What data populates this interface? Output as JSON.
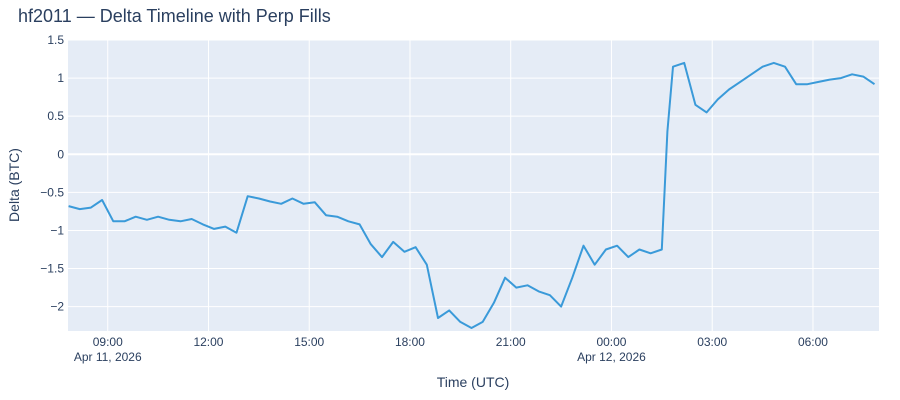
{
  "chart_data": {
    "type": "line",
    "title": "hf2011 — Delta Timeline with Perp Fills",
    "x_label": "Time (UTC)",
    "y_label": "Delta (BTC)",
    "grid": true,
    "background": "#e5ecf6",
    "x": [
      "2026-04-11T07:50",
      "2026-04-11T08:10",
      "2026-04-11T08:30",
      "2026-04-11T08:50",
      "2026-04-11T09:10",
      "2026-04-11T09:30",
      "2026-04-11T09:50",
      "2026-04-11T10:10",
      "2026-04-11T10:30",
      "2026-04-11T10:50",
      "2026-04-11T11:10",
      "2026-04-11T11:30",
      "2026-04-11T11:50",
      "2026-04-11T12:10",
      "2026-04-11T12:30",
      "2026-04-11T12:50",
      "2026-04-11T13:10",
      "2026-04-11T13:30",
      "2026-04-11T13:50",
      "2026-04-11T14:10",
      "2026-04-11T14:30",
      "2026-04-11T14:50",
      "2026-04-11T15:10",
      "2026-04-11T15:30",
      "2026-04-11T15:50",
      "2026-04-11T16:10",
      "2026-04-11T16:30",
      "2026-04-11T16:50",
      "2026-04-11T17:10",
      "2026-04-11T17:30",
      "2026-04-11T17:50",
      "2026-04-11T18:10",
      "2026-04-11T18:30",
      "2026-04-11T18:50",
      "2026-04-11T19:10",
      "2026-04-11T19:30",
      "2026-04-11T19:50",
      "2026-04-11T20:10",
      "2026-04-11T20:30",
      "2026-04-11T20:50",
      "2026-04-11T21:10",
      "2026-04-11T21:30",
      "2026-04-11T21:50",
      "2026-04-11T22:10",
      "2026-04-11T22:30",
      "2026-04-11T22:50",
      "2026-04-11T23:10",
      "2026-04-11T23:30",
      "2026-04-11T23:50",
      "2026-04-12T00:10",
      "2026-04-12T00:30",
      "2026-04-12T00:50",
      "2026-04-12T01:10",
      "2026-04-12T01:30",
      "2026-04-12T01:40",
      "2026-04-12T01:50",
      "2026-04-12T02:10",
      "2026-04-12T02:30",
      "2026-04-12T02:50",
      "2026-04-12T03:10",
      "2026-04-12T03:30",
      "2026-04-12T03:50",
      "2026-04-12T04:10",
      "2026-04-12T04:30",
      "2026-04-12T04:50",
      "2026-04-12T05:10",
      "2026-04-12T05:30",
      "2026-04-12T05:50",
      "2026-04-12T06:10",
      "2026-04-12T06:30",
      "2026-04-12T06:50",
      "2026-04-12T07:10",
      "2026-04-12T07:30",
      "2026-04-12T07:50"
    ],
    "series": [
      {
        "name": "Delta",
        "color": "#3a9ad9",
        "values": [
          -0.68,
          -0.72,
          -0.7,
          -0.6,
          -0.88,
          -0.88,
          -0.82,
          -0.86,
          -0.82,
          -0.86,
          -0.88,
          -0.85,
          -0.92,
          -0.98,
          -0.95,
          -1.03,
          -0.55,
          -0.58,
          -0.62,
          -0.65,
          -0.58,
          -0.65,
          -0.63,
          -0.8,
          -0.82,
          -0.88,
          -0.92,
          -1.18,
          -1.35,
          -1.15,
          -1.28,
          -1.22,
          -1.45,
          -2.15,
          -2.05,
          -2.2,
          -2.28,
          -2.2,
          -1.95,
          -1.62,
          -1.75,
          -1.72,
          -1.8,
          -1.85,
          -2.0,
          -1.62,
          -1.2,
          -1.45,
          -1.25,
          -1.2,
          -1.35,
          -1.25,
          -1.3,
          -1.25,
          0.3,
          1.15,
          1.2,
          0.65,
          0.55,
          0.72,
          0.85,
          0.95,
          1.05,
          1.15,
          1.2,
          1.15,
          0.92,
          0.92,
          0.95,
          0.98,
          1.0,
          1.05,
          1.02,
          0.92
        ]
      }
    ],
    "xlim": [
      "2026-04-11T07:49",
      "2026-04-12T07:58"
    ],
    "xticks": [
      {
        "value": "2026-04-11T09:00",
        "label": "09:00\nApr 11, 2026"
      },
      {
        "value": "2026-04-11T12:00",
        "label": "12:00"
      },
      {
        "value": "2026-04-11T15:00",
        "label": "15:00"
      },
      {
        "value": "2026-04-11T18:00",
        "label": "18:00"
      },
      {
        "value": "2026-04-11T21:00",
        "label": "21:00"
      },
      {
        "value": "2026-04-12T00:00",
        "label": "00:00\nApr 12, 2026"
      },
      {
        "value": "2026-04-12T03:00",
        "label": "03:00"
      },
      {
        "value": "2026-04-12T06:00",
        "label": "06:00"
      }
    ],
    "ylim": [
      -2.32,
      1.5
    ],
    "yticks": [
      {
        "value": -2,
        "label": "−2"
      },
      {
        "value": -1.5,
        "label": "−1.5"
      },
      {
        "value": -1,
        "label": "−1"
      },
      {
        "value": -0.5,
        "label": "−0.5"
      },
      0,
      0.5,
      1,
      1.5
    ]
  }
}
